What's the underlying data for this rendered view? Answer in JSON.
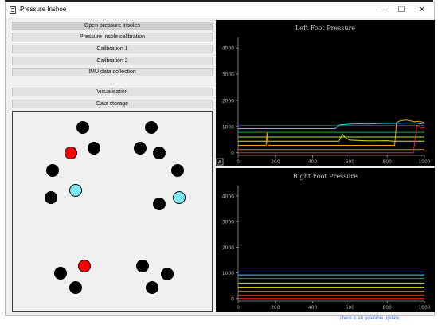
{
  "window": {
    "title": "Pressure Inshoe",
    "minimize": "—",
    "maximize": "☐",
    "close": "✕"
  },
  "background": {
    "notification": "There is an available update."
  },
  "controls": {
    "buttons": [
      "Open pressure insoles",
      "Pressure insole calibration",
      "Calibration 1",
      "Calibration 2",
      "IMU data collection",
      "Visualisation",
      "Data storage"
    ]
  },
  "insole_map": {
    "sensors": [
      {
        "state": "inactive"
      },
      {
        "state": "inactive"
      },
      {
        "state": "high"
      },
      {
        "state": "inactive"
      },
      {
        "state": "inactive"
      },
      {
        "state": "inactive"
      },
      {
        "state": "inactive"
      },
      {
        "state": "inactive"
      },
      {
        "state": "low"
      },
      {
        "state": "inactive"
      },
      {
        "state": "inactive"
      },
      {
        "state": "low"
      },
      {
        "state": "high"
      },
      {
        "state": "inactive"
      },
      {
        "state": "inactive"
      },
      {
        "state": "inactive"
      },
      {
        "state": "inactive"
      },
      {
        "state": "inactive"
      }
    ],
    "colors": {
      "inactive": "#000000",
      "high": "#ff0000",
      "low": "#7ee8f4"
    }
  },
  "chart_data": [
    {
      "type": "line",
      "title": "Left Foot Pressure",
      "xlim": [
        0,
        1000
      ],
      "ylim": [
        -100,
        4400
      ],
      "xticks": [
        0,
        200,
        400,
        600,
        800,
        1000
      ],
      "yticks": [
        0,
        1000,
        2000,
        3000,
        4000
      ],
      "corner_label": "A",
      "series": [
        {
          "color": "#1f3bd4",
          "x": [
            0,
            1000
          ],
          "y": [
            1040,
            1040
          ]
        },
        {
          "color": "#2fd7ff",
          "x": [
            0,
            520,
            540,
            560,
            600,
            650,
            700,
            750,
            800,
            850,
            900,
            950,
            980,
            1000
          ],
          "y": [
            920,
            920,
            1050,
            1070,
            1090,
            1100,
            1095,
            1110,
            1120,
            1115,
            1130,
            1140,
            1100,
            1120
          ]
        },
        {
          "color": "#1aa84a",
          "x": [
            0,
            1000
          ],
          "y": [
            780,
            780
          ]
        },
        {
          "color": "#b7e82a",
          "x": [
            0,
            1000
          ],
          "y": [
            600,
            600
          ]
        },
        {
          "color": "#d6e800",
          "x": [
            0,
            540,
            560,
            580,
            600,
            700,
            800,
            830,
            850,
            1000
          ],
          "y": [
            440,
            440,
            700,
            560,
            480,
            450,
            460,
            440,
            440,
            440
          ]
        },
        {
          "color": "#f2a51a",
          "x": [
            0,
            150,
            155,
            160,
            840,
            850,
            870,
            900,
            950,
            970,
            1000
          ],
          "y": [
            280,
            280,
            760,
            280,
            280,
            1150,
            1220,
            1250,
            1180,
            1200,
            1150
          ]
        },
        {
          "color": "#ff6a2a",
          "x": [
            0,
            1000
          ],
          "y": [
            120,
            120
          ]
        },
        {
          "color": "#ff2020",
          "x": [
            0,
            940,
            960,
            980,
            1000
          ],
          "y": [
            0,
            0,
            1050,
            930,
            960
          ]
        }
      ]
    },
    {
      "type": "line",
      "title": "Right Foot Pressure",
      "xlim": [
        0,
        1000
      ],
      "ylim": [
        -100,
        4400
      ],
      "xticks": [
        0,
        200,
        400,
        600,
        800,
        1000
      ],
      "yticks": [
        0,
        1000,
        2000,
        3000,
        4000
      ],
      "series": [
        {
          "color": "#1f3bd4",
          "x": [
            0,
            1000
          ],
          "y": [
            1040,
            1040
          ]
        },
        {
          "color": "#2fd7ff",
          "x": [
            0,
            1000
          ],
          "y": [
            920,
            920
          ]
        },
        {
          "color": "#1aa84a",
          "x": [
            0,
            1000
          ],
          "y": [
            780,
            780
          ]
        },
        {
          "color": "#b7e82a",
          "x": [
            0,
            1000
          ],
          "y": [
            600,
            600
          ]
        },
        {
          "color": "#d6e800",
          "x": [
            0,
            1000
          ],
          "y": [
            440,
            440
          ]
        },
        {
          "color": "#f2a51a",
          "x": [
            0,
            1000
          ],
          "y": [
            280,
            280
          ]
        },
        {
          "color": "#ff6a2a",
          "x": [
            0,
            1000
          ],
          "y": [
            120,
            120
          ]
        },
        {
          "color": "#ff2020",
          "x": [
            0,
            1000
          ],
          "y": [
            0,
            0
          ]
        }
      ]
    }
  ]
}
